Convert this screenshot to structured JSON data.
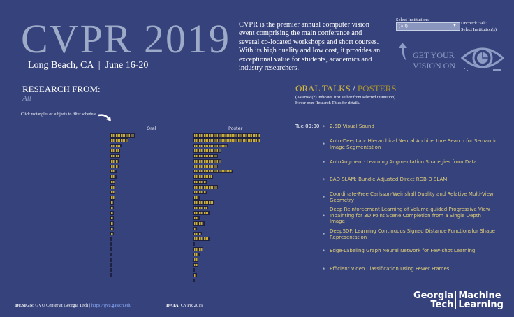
{
  "header": {
    "title": "CVPR 2019",
    "location": "Long Beach, CA",
    "separator": "|",
    "dates": "June 16-20",
    "blurb": "CVPR is the premier annual computer vision event comprising the main conference and several co-located workshops and short courses. With its high quality and low cost, it provides an exceptional value for students, academics and industry researchers."
  },
  "filter": {
    "label": "Select Institutions",
    "value": "(All)",
    "hint_line1": "Uncheck \"All\"",
    "hint_line2": "Select Institution(s)"
  },
  "promo": {
    "line1": "GET YOUR",
    "line2": "VISION ON",
    "icon": "eye-chart-icon"
  },
  "research": {
    "title": "RESEARCH FROM:",
    "selected": "All",
    "hint": "Click rectangles or subjects to filter schedule"
  },
  "chart_data": {
    "type": "bar",
    "orientation": "horizontal",
    "columns": [
      "Oral",
      "Poster"
    ],
    "categories": [
      "Deep Learning",
      "Recognition",
      "Face, Gesture, and Body Pose",
      "Image and Video Synthesis",
      "Segmentation, Grouping and Shape",
      "Vision + Language",
      "3D from Multiview and Sensors",
      "Low-level Vision",
      "3D from Single Image",
      "Motion and Tracking",
      "Representation Learning",
      "Computational Photography",
      "Vision + Graphics",
      "Scene Analysis and Understanding",
      "Vision Applications and Systems",
      "Datasets and Evaluation",
      "Optimization Methods",
      "Video Analytics",
      "Biometrics",
      "Robotics + Driving",
      "Action Recognition",
      "Computer Vision Theory",
      "Medical, Biological and Cell Microsc..",
      "Statistical Learning",
      "Visual Reasoning",
      "Physics-based Vision and Shape-fro..",
      "Big Data, Large Scale Methods",
      "RGBD sensors and analytics",
      "Document Analysis"
    ],
    "series": [
      {
        "name": "Oral",
        "values": [
          15,
          11,
          7,
          6,
          6,
          5,
          5,
          4,
          4,
          3,
          3,
          3,
          3,
          2,
          2,
          2,
          2,
          2,
          2,
          2,
          1,
          1,
          1,
          1,
          1,
          1,
          1,
          1,
          0
        ]
      },
      {
        "name": "Poster",
        "values": [
          42,
          41,
          21,
          17,
          15,
          17,
          15,
          24,
          12,
          8,
          15,
          8,
          4,
          13,
          9,
          10,
          4,
          7,
          2,
          5,
          10,
          1,
          6,
          4,
          3,
          3,
          1,
          2,
          1
        ]
      }
    ],
    "colors": {
      "bar": "#c9ad3a",
      "background": "#36427c"
    }
  },
  "talks": {
    "title_oral": "ORAL TALKS",
    "slash": "/",
    "title_posters": "POSTERS",
    "note1": "(Asterisk (*) indicates first author from selected institution)",
    "note2": "Hover over Research Titles for details.",
    "time": "Tue 09:00",
    "items": [
      "2.5D Visual Sound",
      "Auto-DeepLab: Hierarchical Neural Architecture Search for Semantic Image Segmentation",
      "AutoAugment: Learning Augmentation Strategies from Data",
      "BAD SLAM: Bundle Adjusted Direct RGB-D SLAM",
      "Coordinate-Free Carlsson-Weinshall Duality and Relative Multi-View Geometry",
      "Deep Reinforcement Learning of Volume-guided Progressive View Inpainting for 3D Point Scene Completion from a Single Depth Image",
      "DeepSDF: Learning Continuous Signed Distance Functionsfor Shape Representation",
      "Edge-Labeling Graph Neural Network for Few-shot Learning",
      "Efficient Video Classification Using Fewer Frames"
    ]
  },
  "footer": {
    "design_label": "DESIGN",
    "design": ": GVU Center at Georgia Tech |",
    "link": "https://gvu.gatech.edu",
    "data_label": "DATA",
    "data": ": CVPR 2019",
    "logo_l1": "Georgia",
    "logo_l2": "Tech",
    "logo_r1": "Machine",
    "logo_r2": "Learning"
  }
}
